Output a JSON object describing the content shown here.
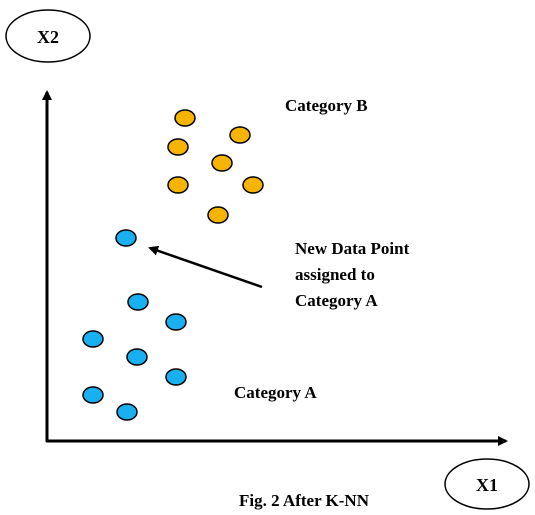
{
  "axes": {
    "y_label": "X2",
    "x_label": "X1"
  },
  "categories": {
    "b": {
      "label": "Category B",
      "color": "#F5B400"
    },
    "a": {
      "label": "Category A",
      "color": "#18B0F0"
    }
  },
  "new_point": {
    "category": "a",
    "annotation": [
      "New Data Point",
      "assigned to",
      "Category A"
    ]
  },
  "caption": "Fig. 2 After K-NN"
}
